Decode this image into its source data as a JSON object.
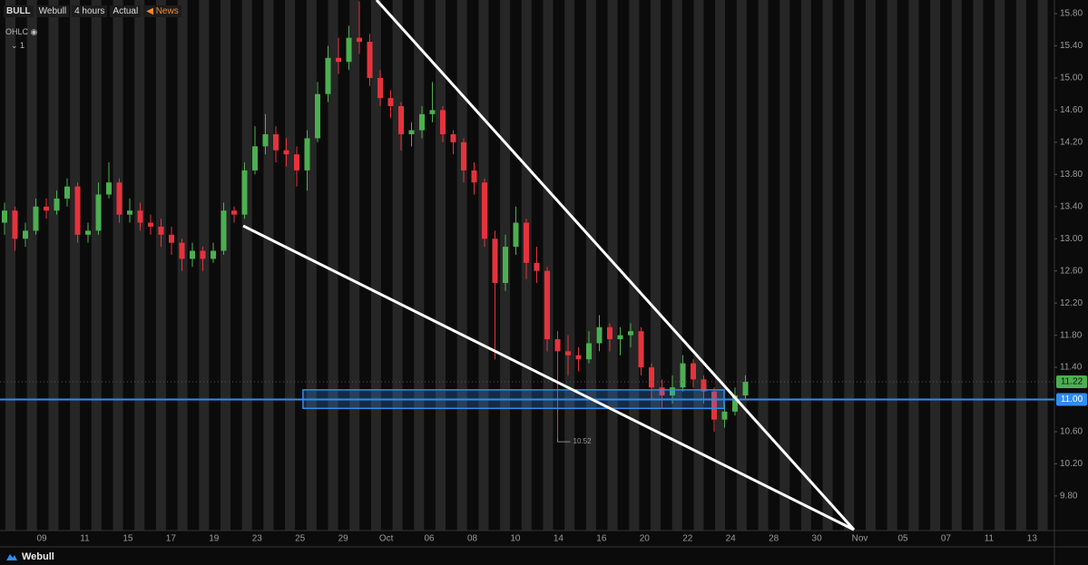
{
  "header": {
    "symbol": "BULL",
    "broker": "Webull",
    "interval": "4 hours",
    "mode": "Actual",
    "news": "News",
    "indicator": "OHLC",
    "count": "1"
  },
  "footer": {
    "brand": "Webull"
  },
  "chart_data": {
    "type": "candlestick",
    "up_color": "#4caf50",
    "down_color": "#e5333d",
    "open": [
      13.2,
      13.35,
      13.0,
      13.1,
      13.4,
      13.35,
      13.5,
      13.65,
      13.05,
      13.1,
      13.55,
      13.7,
      13.3,
      13.35,
      13.2,
      13.15,
      13.05,
      12.95,
      12.75,
      12.85,
      12.75,
      12.85,
      13.35,
      13.3,
      13.85,
      14.15,
      14.3,
      14.1,
      14.05,
      13.85,
      14.25,
      14.8,
      15.25,
      15.2,
      15.5,
      15.45,
      15.0,
      14.75,
      14.65,
      14.3,
      14.35,
      14.55,
      14.6,
      14.3,
      14.2,
      13.85,
      13.7,
      13.0,
      12.45,
      12.9,
      13.2,
      12.7,
      12.6,
      11.75,
      11.6,
      11.55,
      11.5,
      11.7,
      11.9,
      11.75,
      11.8,
      11.85,
      11.4,
      11.15,
      11.05,
      11.15,
      11.45,
      11.25,
      11.1,
      10.75,
      10.85,
      11.05
    ],
    "high": [
      13.45,
      13.4,
      13.2,
      13.5,
      13.5,
      13.6,
      13.75,
      13.7,
      13.2,
      13.7,
      13.95,
      13.75,
      13.5,
      13.45,
      13.3,
      13.25,
      13.15,
      13.0,
      12.95,
      12.9,
      12.95,
      13.45,
      13.4,
      13.95,
      14.4,
      14.55,
      14.4,
      14.25,
      14.15,
      14.35,
      14.95,
      15.4,
      15.5,
      15.65,
      15.95,
      15.55,
      15.1,
      14.85,
      14.7,
      14.45,
      14.65,
      14.95,
      14.65,
      14.35,
      14.25,
      13.95,
      13.75,
      13.1,
      13.05,
      13.4,
      13.25,
      12.9,
      12.65,
      11.85,
      11.8,
      11.65,
      11.85,
      12.05,
      11.95,
      11.9,
      11.95,
      11.9,
      11.45,
      11.25,
      11.3,
      11.55,
      11.5,
      11.3,
      11.15,
      10.95,
      11.15,
      11.3
    ],
    "low": [
      13.05,
      12.85,
      12.9,
      13.05,
      13.25,
      13.3,
      13.4,
      12.95,
      12.95,
      13.05,
      13.5,
      13.2,
      13.2,
      13.1,
      13.05,
      12.9,
      12.8,
      12.6,
      12.65,
      12.6,
      12.7,
      12.8,
      13.2,
      13.25,
      13.8,
      14.05,
      13.95,
      13.9,
      13.65,
      13.6,
      14.2,
      14.7,
      15.05,
      15.1,
      15.3,
      14.9,
      14.65,
      14.5,
      14.1,
      14.15,
      14.25,
      14.45,
      14.2,
      14.05,
      13.7,
      13.55,
      12.9,
      11.5,
      12.35,
      12.8,
      12.5,
      12.45,
      11.6,
      10.52,
      11.3,
      11.35,
      11.45,
      11.6,
      11.6,
      11.55,
      11.65,
      11.3,
      11.0,
      10.9,
      10.95,
      11.1,
      11.15,
      10.95,
      10.6,
      10.65,
      10.8,
      11.0
    ],
    "close": [
      13.35,
      13.0,
      13.1,
      13.4,
      13.35,
      13.5,
      13.65,
      13.05,
      13.1,
      13.55,
      13.7,
      13.3,
      13.35,
      13.2,
      13.15,
      13.05,
      12.95,
      12.75,
      12.85,
      12.75,
      12.85,
      13.35,
      13.3,
      13.85,
      14.15,
      14.3,
      14.1,
      14.05,
      13.85,
      14.25,
      14.8,
      15.25,
      15.2,
      15.5,
      15.45,
      15.0,
      14.75,
      14.65,
      14.3,
      14.35,
      14.55,
      14.6,
      14.3,
      14.2,
      13.85,
      13.7,
      13.0,
      12.45,
      12.9,
      13.2,
      12.7,
      12.6,
      11.75,
      11.6,
      11.55,
      11.5,
      11.7,
      11.9,
      11.75,
      11.8,
      11.85,
      11.4,
      11.15,
      11.05,
      11.15,
      11.45,
      11.25,
      11.1,
      10.75,
      10.85,
      11.05,
      11.22
    ],
    "categories": [
      "09",
      "11",
      "15",
      "17",
      "19",
      "23",
      "25",
      "29",
      "Oct",
      "06",
      "08",
      "10",
      "14",
      "16",
      "20",
      "22",
      "24",
      "28",
      "30",
      "Nov",
      "05",
      "07",
      "11",
      "13"
    ],
    "ylim": [
      9.37,
      15.97
    ],
    "yticks": [
      {
        "value": 15.8,
        "label": "15.80"
      },
      {
        "value": 15.4,
        "label": "15.40"
      },
      {
        "value": 15,
        "label": "15.00"
      },
      {
        "value": 14.6,
        "label": "14.60"
      },
      {
        "value": 14.2,
        "label": "14.20"
      },
      {
        "value": 13.8,
        "label": "13.80"
      },
      {
        "value": 13.4,
        "label": "13.40"
      },
      {
        "value": 13,
        "label": "13.00"
      },
      {
        "value": 12.6,
        "label": "12.60"
      },
      {
        "value": 12.2,
        "label": "12.20"
      },
      {
        "value": 11.8,
        "label": "11.80"
      },
      {
        "value": 11.4,
        "label": "11.40"
      },
      {
        "value": 10.6,
        "label": "10.60"
      },
      {
        "value": 10.2,
        "label": "10.20"
      },
      {
        "value": 9.8,
        "label": "9.80"
      }
    ],
    "last_price": {
      "value": 11.22,
      "label": "11.22",
      "color": "#4caf50"
    },
    "hline": {
      "value": 11,
      "label": "11.00",
      "color": "#2f8cf0"
    },
    "zone": {
      "top": 11.12,
      "bottom": 10.89,
      "start": 28.6,
      "end": 68.96,
      "color": "#2f8cf0"
    },
    "trendlines": [
      {
        "x": [
          35.65,
          81.4
        ],
        "y": [
          15.97,
          9.38
        ]
      },
      {
        "x": [
          22.87,
          81.4
        ],
        "y": [
          13.16,
          9.38
        ]
      }
    ],
    "low_marker": {
      "index": 53,
      "value": 10.52,
      "label": "10.52"
    }
  }
}
